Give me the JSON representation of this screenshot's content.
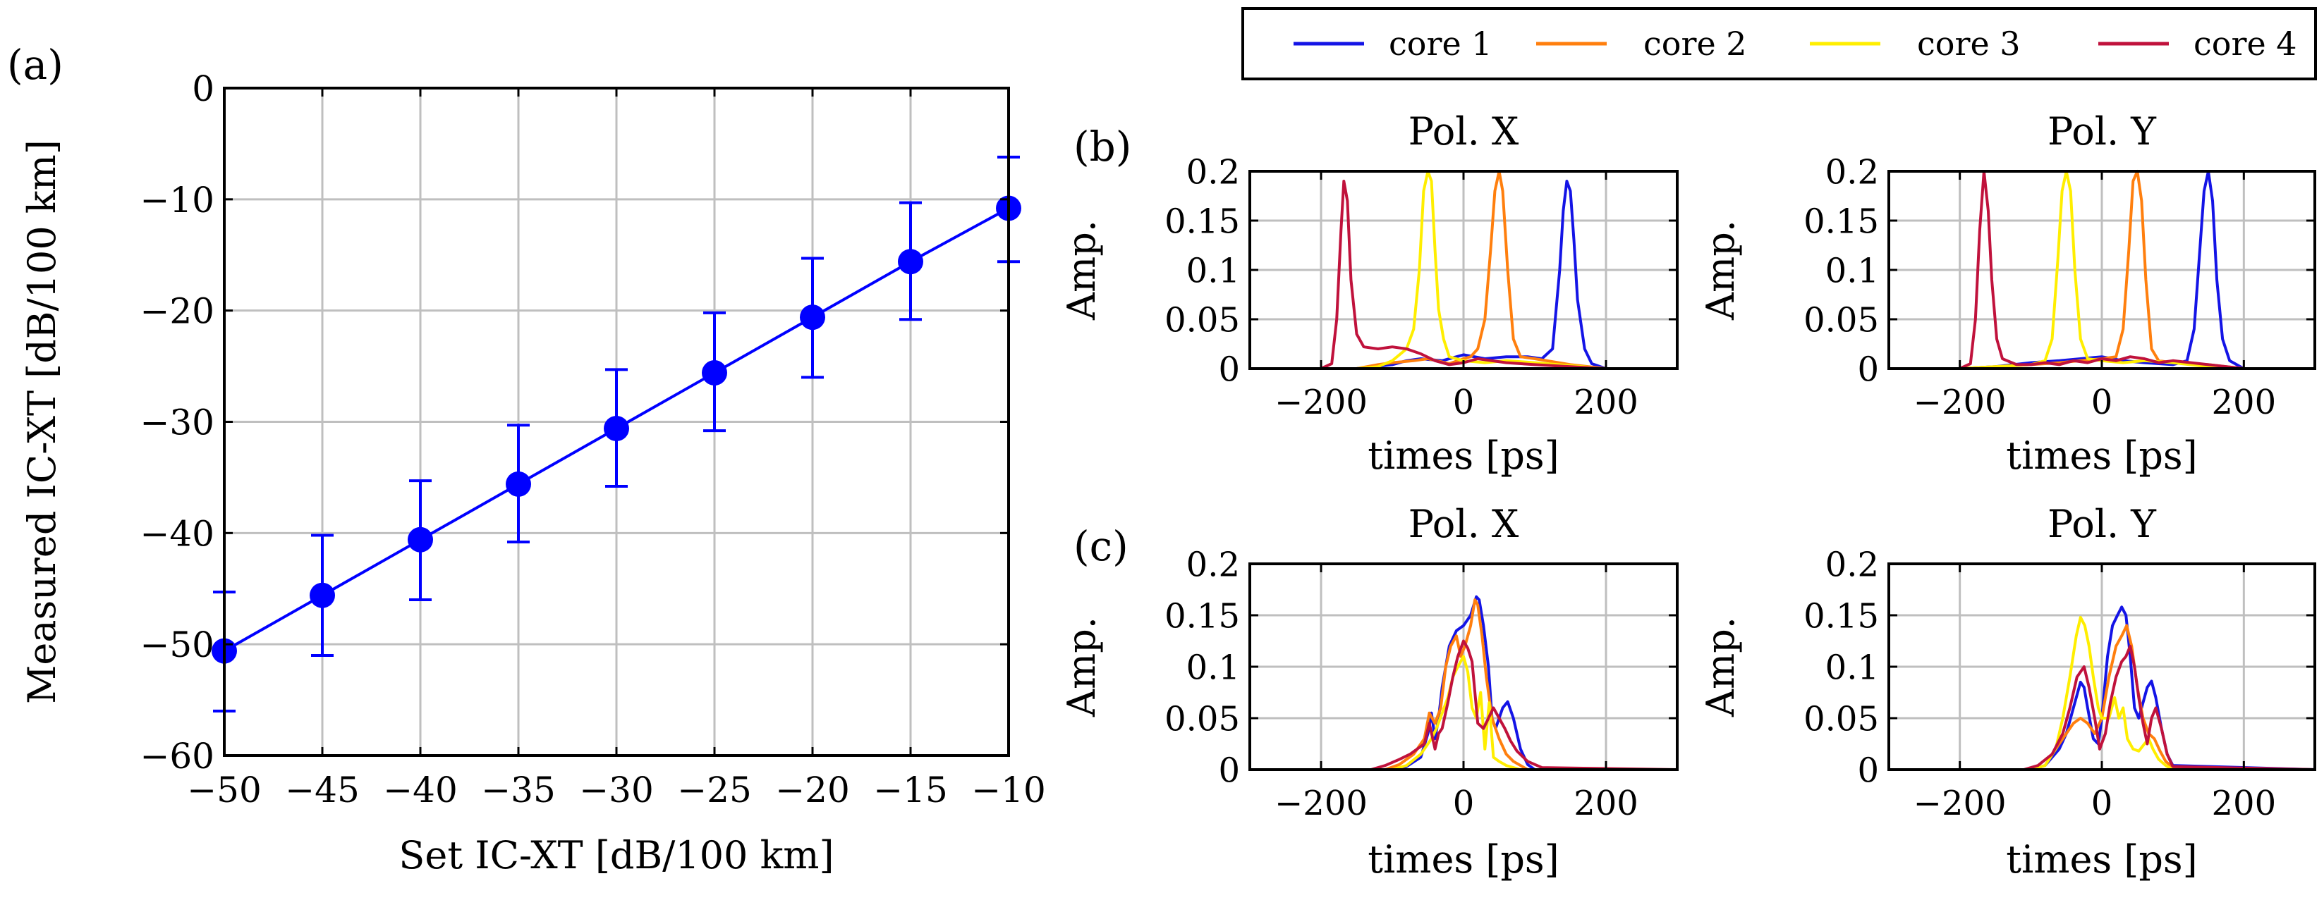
{
  "colors": {
    "series_a": "#0000ff",
    "grid": "#bfbfbf",
    "core1": "#1414e6",
    "core2": "#ff7f0e",
    "core3": "#ffee00",
    "core4": "#c0123c"
  },
  "legend": {
    "entries": [
      "core 1",
      "core 2",
      "core 3",
      "core 4"
    ],
    "placement": "top-right"
  },
  "chart_data": [
    {
      "id": "a",
      "label": "(a)",
      "type": "line",
      "title": "",
      "xlabel": "Set IC-XT [dB/100 km]",
      "ylabel": "Measured IC-XT [dB/100 km]",
      "xlim": [
        -50,
        -10
      ],
      "ylim": [
        -60,
        0
      ],
      "x_ticks": [
        -50,
        -45,
        -40,
        -35,
        -30,
        -25,
        -20,
        -15,
        -10
      ],
      "y_ticks": [
        -60,
        -50,
        -40,
        -30,
        -20,
        -10,
        0
      ],
      "x_ticklabels": [
        "−50",
        "−45",
        "−40",
        "−35",
        "−30",
        "−25",
        "−20",
        "−15",
        "−10"
      ],
      "y_ticklabels": [
        "−60",
        "−50",
        "−40",
        "−30",
        "−20",
        "−10",
        "0"
      ],
      "grid": true,
      "series": [
        {
          "name": "Measured",
          "x": [
            -50,
            -45,
            -40,
            -35,
            -30,
            -25,
            -20,
            -15,
            -10
          ],
          "y": [
            -50.6,
            -45.6,
            -40.6,
            -35.6,
            -30.6,
            -25.6,
            -20.6,
            -15.6,
            -10.8
          ],
          "err_low": [
            -56,
            -51,
            -46,
            -40.8,
            -35.8,
            -30.8,
            -26,
            -20.8,
            -15.6
          ],
          "err_high": [
            -45.3,
            -40.2,
            -35.3,
            -30.3,
            -25.3,
            -20.2,
            -15.3,
            -10.3,
            -6.2
          ]
        }
      ]
    },
    {
      "id": "b-x",
      "label": "(b)",
      "type": "line",
      "title": "Pol. X",
      "xlabel": "times [ps]",
      "ylabel": "Amp.",
      "xlim": [
        -300,
        300
      ],
      "ylim": [
        0,
        0.2
      ],
      "x_ticks": [
        -200,
        0,
        200
      ],
      "y_ticks": [
        0,
        0.05,
        0.1,
        0.15,
        0.2
      ],
      "x_ticklabels": [
        "−200",
        "0",
        "200"
      ],
      "y_ticklabels": [
        "0",
        "0.05",
        "0.1",
        "0.15",
        "0.2"
      ],
      "grid": true,
      "series": [
        {
          "name": "core 1",
          "x": [
            -300,
            -200,
            -150,
            -100,
            -80,
            -60,
            -30,
            0,
            30,
            60,
            90,
            110,
            125,
            135,
            140,
            145,
            150,
            155,
            160,
            170,
            180,
            200,
            300
          ],
          "y": [
            0,
            0,
            0,
            0.004,
            0.008,
            0.01,
            0.008,
            0.014,
            0.01,
            0.012,
            0.012,
            0.01,
            0.02,
            0.1,
            0.16,
            0.19,
            0.18,
            0.13,
            0.07,
            0.02,
            0.005,
            0,
            0
          ]
        },
        {
          "name": "core 2",
          "x": [
            -300,
            -200,
            -150,
            -120,
            -100,
            -70,
            -50,
            -20,
            0,
            10,
            20,
            30,
            38,
            44,
            50,
            55,
            62,
            70,
            80,
            100,
            150,
            200,
            300
          ],
          "y": [
            0,
            0,
            0,
            0.004,
            0.006,
            0.008,
            0.01,
            0.005,
            0.01,
            0.012,
            0.02,
            0.05,
            0.12,
            0.18,
            0.2,
            0.18,
            0.1,
            0.03,
            0.012,
            0.01,
            0.004,
            0,
            0
          ]
        },
        {
          "name": "core 3",
          "x": [
            -300,
            -200,
            -150,
            -120,
            -100,
            -90,
            -80,
            -70,
            -62,
            -56,
            -50,
            -45,
            -40,
            -35,
            -28,
            -20,
            0,
            30,
            60,
            100,
            150,
            200,
            300
          ],
          "y": [
            0,
            0,
            0,
            0.002,
            0.008,
            0.014,
            0.02,
            0.04,
            0.1,
            0.18,
            0.2,
            0.19,
            0.12,
            0.06,
            0.03,
            0.012,
            0.008,
            0.006,
            0.008,
            0.006,
            0.003,
            0,
            0
          ]
        },
        {
          "name": "core 4",
          "x": [
            -300,
            -200,
            -185,
            -178,
            -172,
            -168,
            -163,
            -158,
            -150,
            -140,
            -120,
            -100,
            -80,
            -60,
            -40,
            -20,
            0,
            20,
            60,
            100,
            150,
            200,
            300
          ],
          "y": [
            0,
            0,
            0.005,
            0.05,
            0.14,
            0.19,
            0.17,
            0.09,
            0.035,
            0.022,
            0.02,
            0.022,
            0.02,
            0.015,
            0.008,
            0.004,
            0.006,
            0.01,
            0.006,
            0.004,
            0.002,
            0,
            0
          ]
        }
      ]
    },
    {
      "id": "b-y",
      "label": "",
      "type": "line",
      "title": "Pol. Y",
      "xlabel": "times [ps]",
      "ylabel": "Amp.",
      "xlim": [
        -300,
        300
      ],
      "ylim": [
        0,
        0.2
      ],
      "x_ticks": [
        -200,
        0,
        200
      ],
      "y_ticks": [
        0,
        0.05,
        0.1,
        0.15,
        0.2
      ],
      "x_ticklabels": [
        "−200",
        "0",
        "200"
      ],
      "y_ticklabels": [
        "0",
        "0.05",
        "0.1",
        "0.15",
        "0.2"
      ],
      "grid": true,
      "series": [
        {
          "name": "core 1",
          "x": [
            -300,
            -200,
            -150,
            -100,
            -60,
            -30,
            0,
            30,
            60,
            100,
            120,
            130,
            138,
            144,
            150,
            156,
            162,
            170,
            180,
            200,
            300
          ],
          "y": [
            0,
            0,
            0.002,
            0.006,
            0.008,
            0.01,
            0.012,
            0.008,
            0.006,
            0.004,
            0.008,
            0.04,
            0.12,
            0.18,
            0.2,
            0.17,
            0.09,
            0.03,
            0.008,
            0,
            0
          ]
        },
        {
          "name": "core 2",
          "x": [
            -300,
            -200,
            -150,
            -100,
            -60,
            -30,
            0,
            20,
            30,
            38,
            44,
            50,
            56,
            62,
            70,
            80,
            100,
            150,
            200,
            300
          ],
          "y": [
            0,
            0,
            0.002,
            0.004,
            0.006,
            0.008,
            0.01,
            0.012,
            0.04,
            0.12,
            0.19,
            0.2,
            0.17,
            0.09,
            0.02,
            0.008,
            0.006,
            0.004,
            0,
            0
          ]
        },
        {
          "name": "core 3",
          "x": [
            -300,
            -200,
            -150,
            -100,
            -80,
            -70,
            -62,
            -56,
            -50,
            -44,
            -38,
            -30,
            -20,
            0,
            30,
            60,
            100,
            150,
            200,
            300
          ],
          "y": [
            0,
            0,
            0.002,
            0.004,
            0.008,
            0.03,
            0.11,
            0.18,
            0.2,
            0.18,
            0.1,
            0.03,
            0.01,
            0.008,
            0.006,
            0.008,
            0.006,
            0.002,
            0,
            0
          ]
        },
        {
          "name": "core 4",
          "x": [
            -300,
            -200,
            -185,
            -178,
            -172,
            -166,
            -160,
            -155,
            -148,
            -140,
            -120,
            -100,
            -80,
            -60,
            -40,
            -20,
            0,
            20,
            40,
            60,
            80,
            100,
            150,
            200,
            300
          ],
          "y": [
            0,
            0,
            0.005,
            0.05,
            0.14,
            0.2,
            0.16,
            0.09,
            0.03,
            0.01,
            0.004,
            0.004,
            0.006,
            0.004,
            0.008,
            0.006,
            0.01,
            0.008,
            0.012,
            0.01,
            0.006,
            0.008,
            0.004,
            0,
            0
          ]
        }
      ]
    },
    {
      "id": "c-x",
      "label": "(c)",
      "type": "line",
      "title": "Pol. X",
      "xlabel": "times [ps]",
      "ylabel": "Amp.",
      "xlim": [
        -300,
        300
      ],
      "ylim": [
        0,
        0.2
      ],
      "x_ticks": [
        -200,
        0,
        200
      ],
      "y_ticks": [
        0,
        0.05,
        0.1,
        0.15,
        0.2
      ],
      "x_ticklabels": [
        "−200",
        "0",
        "200"
      ],
      "y_ticklabels": [
        "0",
        "0.05",
        "0.1",
        "0.15",
        "0.2"
      ],
      "grid": true,
      "series": [
        {
          "name": "core 1",
          "x": [
            -300,
            -100,
            -80,
            -60,
            -50,
            -45,
            -40,
            -35,
            -30,
            -20,
            -10,
            0,
            10,
            18,
            22,
            28,
            35,
            40,
            45,
            55,
            62,
            70,
            80,
            90,
            100,
            300
          ],
          "y": [
            0,
            0,
            0.003,
            0.012,
            0.035,
            0.055,
            0.03,
            0.05,
            0.08,
            0.12,
            0.135,
            0.14,
            0.15,
            0.168,
            0.165,
            0.14,
            0.1,
            0.05,
            0.04,
            0.06,
            0.066,
            0.05,
            0.02,
            0.005,
            0,
            0
          ]
        },
        {
          "name": "core 2",
          "x": [
            -300,
            -110,
            -90,
            -70,
            -55,
            -48,
            -40,
            -32,
            -25,
            -18,
            -10,
            -4,
            2,
            10,
            16,
            20,
            26,
            32,
            40,
            50,
            60,
            70,
            90,
            300
          ],
          "y": [
            0,
            0,
            0.005,
            0.015,
            0.03,
            0.055,
            0.045,
            0.06,
            0.1,
            0.12,
            0.13,
            0.11,
            0.12,
            0.14,
            0.165,
            0.16,
            0.13,
            0.09,
            0.05,
            0.03,
            0.015,
            0.008,
            0,
            0
          ]
        },
        {
          "name": "core 3",
          "x": [
            -300,
            -100,
            -80,
            -60,
            -45,
            -38,
            -30,
            -22,
            -15,
            -8,
            0,
            6,
            12,
            18,
            24,
            30,
            36,
            42,
            50,
            60,
            80,
            300
          ],
          "y": [
            0,
            0,
            0.004,
            0.015,
            0.03,
            0.04,
            0.055,
            0.07,
            0.09,
            0.1,
            0.11,
            0.095,
            0.06,
            0.05,
            0.075,
            0.02,
            0.065,
            0.012,
            0.008,
            0.004,
            0,
            0
          ]
        },
        {
          "name": "core 4",
          "x": [
            -300,
            -130,
            -110,
            -90,
            -75,
            -65,
            -55,
            -48,
            -40,
            -35,
            -30,
            -22,
            -15,
            -8,
            0,
            6,
            12,
            20,
            28,
            35,
            42,
            50,
            58,
            66,
            75,
            90,
            110,
            300
          ],
          "y": [
            0,
            0,
            0.004,
            0.01,
            0.015,
            0.02,
            0.025,
            0.045,
            0.02,
            0.035,
            0.04,
            0.065,
            0.09,
            0.11,
            0.125,
            0.118,
            0.105,
            0.045,
            0.04,
            0.05,
            0.06,
            0.05,
            0.04,
            0.028,
            0.018,
            0.008,
            0.002,
            0
          ]
        }
      ]
    },
    {
      "id": "c-y",
      "label": "",
      "type": "line",
      "title": "Pol. Y",
      "xlabel": "times [ps]",
      "ylabel": "Amp.",
      "xlim": [
        -300,
        300
      ],
      "ylim": [
        0,
        0.2
      ],
      "x_ticks": [
        -200,
        0,
        200
      ],
      "y_ticks": [
        0,
        0.05,
        0.1,
        0.15,
        0.2
      ],
      "x_ticklabels": [
        "−200",
        "0",
        "200"
      ],
      "y_ticklabels": [
        "0",
        "0.05",
        "0.1",
        "0.15",
        "0.2"
      ],
      "grid": true,
      "series": [
        {
          "name": "core 1",
          "x": [
            -300,
            -100,
            -80,
            -60,
            -50,
            -40,
            -30,
            -25,
            -20,
            -12,
            -5,
            0,
            8,
            15,
            22,
            28,
            34,
            40,
            46,
            52,
            58,
            64,
            70,
            76,
            84,
            92,
            100,
            300
          ],
          "y": [
            0,
            0,
            0.004,
            0.02,
            0.035,
            0.06,
            0.085,
            0.08,
            0.06,
            0.03,
            0.025,
            0.05,
            0.11,
            0.14,
            0.15,
            0.158,
            0.15,
            0.11,
            0.06,
            0.05,
            0.065,
            0.08,
            0.086,
            0.07,
            0.04,
            0.015,
            0.004,
            0
          ]
        },
        {
          "name": "core 2",
          "x": [
            -300,
            -100,
            -80,
            -65,
            -50,
            -40,
            -30,
            -20,
            -10,
            0,
            10,
            20,
            28,
            35,
            42,
            50,
            58,
            66,
            74,
            82,
            90,
            100,
            300
          ],
          "y": [
            0,
            0,
            0.004,
            0.02,
            0.035,
            0.045,
            0.05,
            0.045,
            0.035,
            0.05,
            0.09,
            0.12,
            0.13,
            0.14,
            0.12,
            0.08,
            0.05,
            0.035,
            0.03,
            0.018,
            0.008,
            0.002,
            0
          ]
        },
        {
          "name": "core 3",
          "x": [
            -300,
            -100,
            -80,
            -65,
            -55,
            -45,
            -36,
            -30,
            -24,
            -18,
            -12,
            -5,
            0,
            10,
            18,
            24,
            30,
            36,
            44,
            52,
            60,
            66,
            72,
            80,
            90,
            100,
            300
          ],
          "y": [
            0,
            0,
            0.004,
            0.02,
            0.05,
            0.09,
            0.13,
            0.148,
            0.14,
            0.12,
            0.09,
            0.06,
            0.05,
            0.05,
            0.07,
            0.05,
            0.06,
            0.03,
            0.02,
            0.018,
            0.025,
            0.03,
            0.02,
            0.01,
            0.004,
            0,
            0
          ]
        },
        {
          "name": "core 4",
          "x": [
            -300,
            -110,
            -90,
            -70,
            -55,
            -45,
            -35,
            -25,
            -18,
            -10,
            -3,
            5,
            12,
            20,
            28,
            34,
            40,
            46,
            52,
            58,
            64,
            70,
            76,
            84,
            92,
            100,
            300
          ],
          "y": [
            0,
            0,
            0.004,
            0.015,
            0.035,
            0.06,
            0.09,
            0.1,
            0.08,
            0.05,
            0.02,
            0.035,
            0.065,
            0.09,
            0.105,
            0.11,
            0.12,
            0.1,
            0.07,
            0.045,
            0.025,
            0.05,
            0.06,
            0.04,
            0.015,
            0.003,
            0
          ]
        }
      ]
    }
  ]
}
